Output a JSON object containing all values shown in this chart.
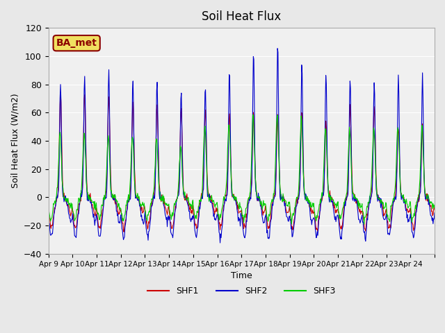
{
  "title": "Soil Heat Flux",
  "ylabel": "Soil Heat Flux (W/m2)",
  "xlabel": "Time",
  "ylim": [
    -40,
    120
  ],
  "bg_color": "#e8e8e8",
  "plot_bg_color": "#f0f0f0",
  "annotation_text": "BA_met",
  "annotation_bg": "#f0e060",
  "annotation_border": "#8b0000",
  "series_colors": [
    "#cc0000",
    "#0000cc",
    "#00cc00"
  ],
  "series_labels": [
    "SHF1",
    "SHF2",
    "SHF3"
  ],
  "tick_labels": [
    "Apr 9",
    "Apr 10",
    "Apr 11",
    "Apr 12",
    "Apr 13",
    "Apr 14",
    "Apr 15",
    "Apr 16",
    "Apr 17",
    "Apr 18",
    "Apr 19",
    "Apr 20",
    "Apr 21",
    "Apr 22",
    "Apr 23",
    "Apr 24",
    ""
  ],
  "n_days": 16,
  "start_day": 9,
  "yticks": [
    -40,
    -20,
    0,
    20,
    40,
    60,
    80,
    100,
    120
  ]
}
